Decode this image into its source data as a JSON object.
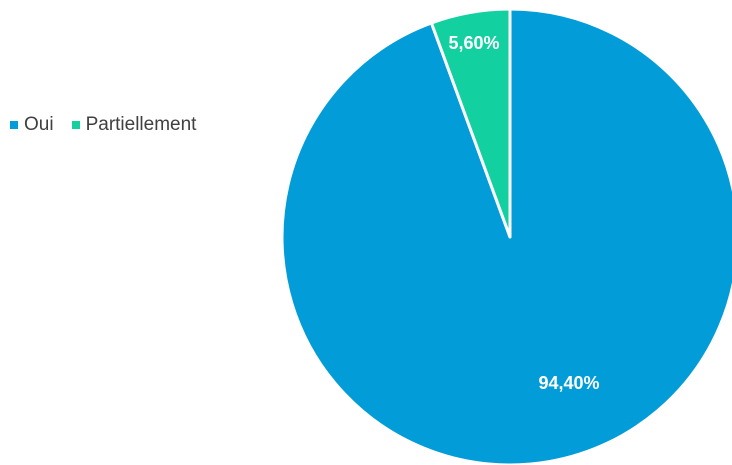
{
  "chart_data": {
    "type": "pie",
    "title": "",
    "categories": [
      "Oui",
      "Partiellement"
    ],
    "values": [
      94.4,
      5.6
    ],
    "data_labels": [
      "94,40%",
      "5,60%"
    ],
    "colors": [
      "#029CD8",
      "#13D0A0"
    ],
    "legend_position": "top-left"
  }
}
